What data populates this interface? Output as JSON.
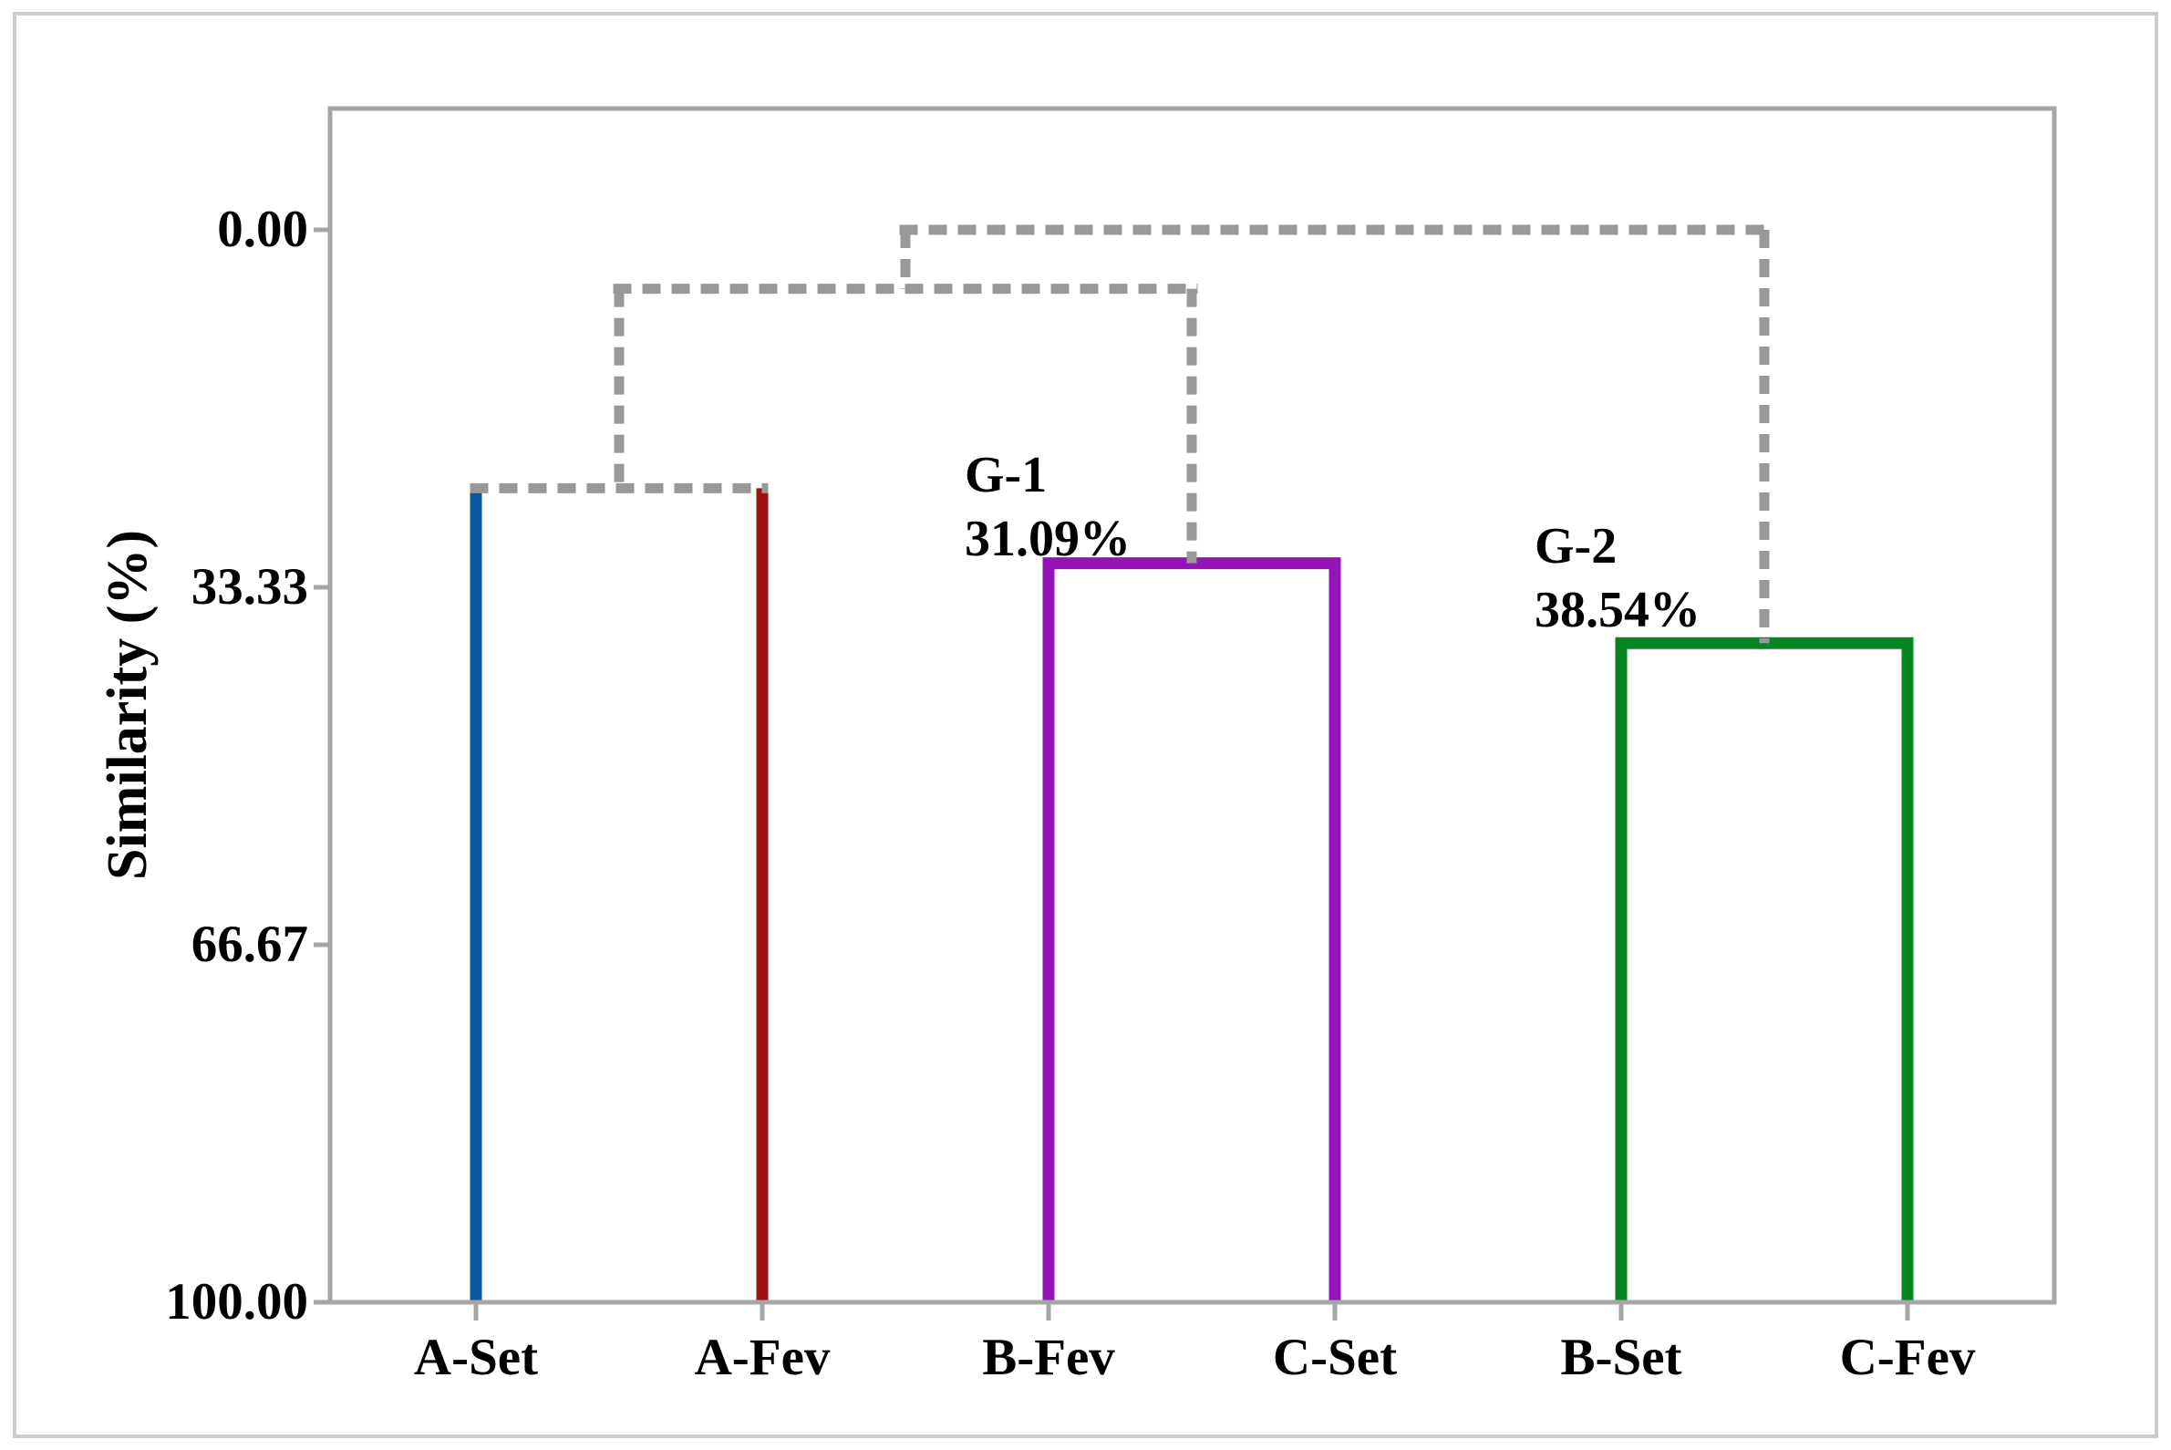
{
  "colors": {
    "background": "#ffffff",
    "outer_border": "#cccccc",
    "axis": "#a6a6a6",
    "dashed_link": "#999999",
    "blue_leaf": "#0b55a5",
    "darkred_leaf": "#9b1313",
    "purple_cluster": "#9414b8",
    "green_cluster": "#068522",
    "text": "#000000"
  },
  "chart_data": {
    "type": "dendrogram",
    "orientation": "vertical, similarity axis increases downward (0 at top)",
    "ylabel": "Similarity (%)",
    "y_axis": {
      "unit": "%",
      "range": [
        0,
        100
      ],
      "ticks": [
        0.0,
        33.33,
        66.67,
        100.0
      ],
      "tick_labels": [
        "0.00",
        "33.33",
        "66.67",
        "100.00"
      ]
    },
    "leaves": [
      {
        "label": "A-Set",
        "color": "#0b55a5"
      },
      {
        "label": "A-Fev",
        "color": "#9b1313"
      },
      {
        "label": "B-Fev",
        "color": "#9414b8"
      },
      {
        "label": "C-Set",
        "color": "#9414b8"
      },
      {
        "label": "B-Set",
        "color": "#068522"
      },
      {
        "label": "C-Fev",
        "color": "#068522"
      }
    ],
    "merges": [
      {
        "id": "A-pair",
        "left": "A-Set",
        "right": "A-Fev",
        "similarity_pct": 24.1,
        "line": "dashed",
        "labeled": false,
        "note": "estimated from axis"
      },
      {
        "id": "G-1",
        "left": "B-Fev",
        "right": "C-Set",
        "similarity_pct": 31.09,
        "line": "solid",
        "color": "#9414b8",
        "labeled": true
      },
      {
        "id": "AG-1",
        "left": "A-pair",
        "right": "G-1",
        "similarity_pct": 5.5,
        "line": "dashed",
        "labeled": false,
        "note": "estimated from axis"
      },
      {
        "id": "G-2",
        "left": "B-Set",
        "right": "C-Fev",
        "similarity_pct": 38.54,
        "line": "solid",
        "color": "#068522",
        "labeled": true
      },
      {
        "id": "root",
        "left": "AG-1",
        "right": "G-2",
        "similarity_pct": 0.0,
        "line": "dashed",
        "labeled": false,
        "note": "estimated from axis"
      }
    ],
    "annotations": [
      {
        "group": "G-1",
        "name": "G-1",
        "value": "31.09%"
      },
      {
        "group": "G-2",
        "name": "G-2",
        "value": "38.54%"
      }
    ],
    "legend": "none",
    "grid": "off"
  }
}
